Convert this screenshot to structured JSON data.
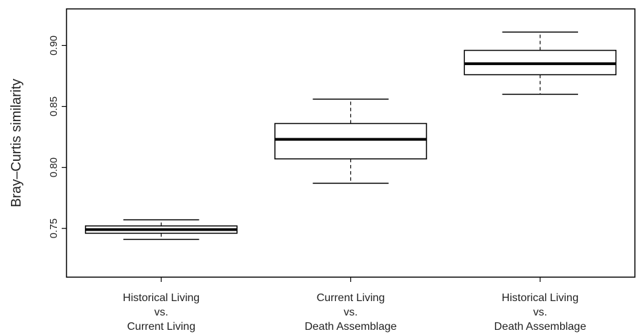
{
  "chart_data": {
    "type": "boxplot",
    "title": "",
    "xlabel": "",
    "ylabel": "Bray–Curtis similarity",
    "ylim": [
      0.71,
      0.93
    ],
    "yticks": [
      "0.75",
      "0.80",
      "0.85",
      "0.90"
    ],
    "grid": false,
    "categories": [
      [
        "Historical Living",
        "vs.",
        "Current Living"
      ],
      [
        "Current Living",
        "vs.",
        "Death Assemblage"
      ],
      [
        "Historical Living",
        "vs.",
        "Death Assemblage"
      ]
    ],
    "boxes": [
      {
        "min": 0.741,
        "q1": 0.746,
        "median": 0.749,
        "q3": 0.752,
        "max": 0.757
      },
      {
        "min": 0.787,
        "q1": 0.807,
        "median": 0.823,
        "q3": 0.836,
        "max": 0.856
      },
      {
        "min": 0.86,
        "q1": 0.876,
        "median": 0.885,
        "q3": 0.896,
        "max": 0.911
      }
    ]
  }
}
